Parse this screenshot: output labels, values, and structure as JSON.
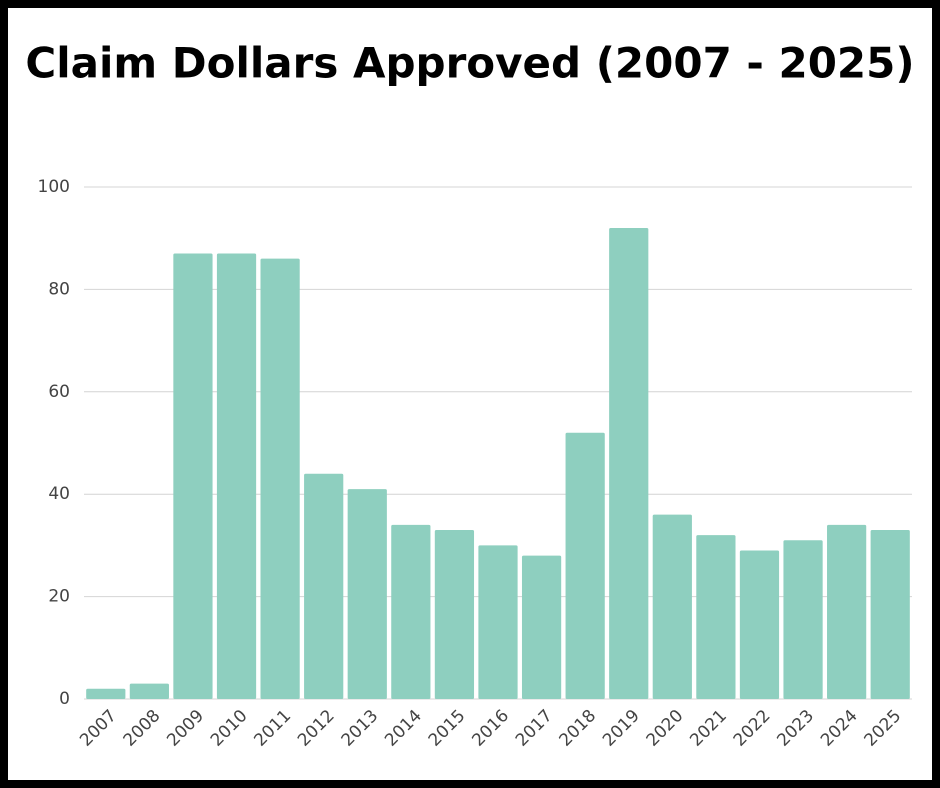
{
  "chart_data": {
    "type": "bar",
    "title": "Claim Dollars Approved (2007 - 2025)",
    "categories": [
      "2007",
      "2008",
      "2009",
      "2010",
      "2011",
      "2012",
      "2013",
      "2014",
      "2015",
      "2016",
      "2017",
      "2018",
      "2019",
      "2020",
      "2021",
      "2022",
      "2023",
      "2024",
      "2025"
    ],
    "values": [
      2,
      3,
      87,
      87,
      86,
      44,
      41,
      34,
      33,
      30,
      28,
      52,
      92,
      36,
      32,
      29,
      31,
      34,
      33
    ],
    "color": "#8ecfbf",
    "ylim": [
      0,
      100
    ],
    "yticks": [
      0,
      20,
      40,
      60,
      80,
      100
    ],
    "grid": true
  }
}
